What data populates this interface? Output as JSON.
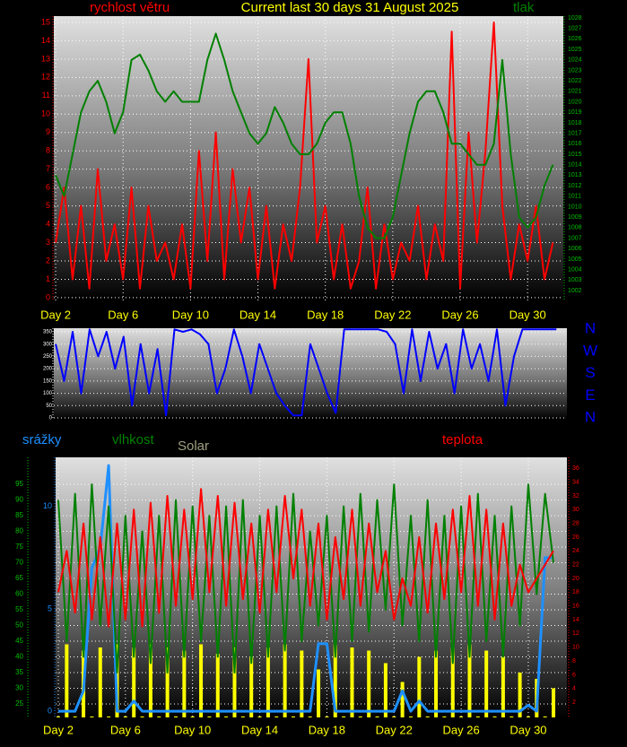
{
  "chart_data": [
    {
      "type": "line",
      "title": "Current last 30 days 31 August 2025",
      "x": [
        2,
        2.5,
        3,
        3.5,
        4,
        4.5,
        5,
        5.5,
        6,
        6.5,
        7,
        7.5,
        8,
        8.5,
        9,
        9.5,
        10,
        10.5,
        11,
        11.5,
        12,
        12.5,
        13,
        13.5,
        14,
        14.5,
        15,
        15.5,
        16,
        16.5,
        17,
        17.5,
        18,
        18.5,
        19,
        19.5,
        20,
        20.5,
        21,
        21.5,
        22,
        22.5,
        23,
        23.5,
        24,
        24.5,
        25,
        25.5,
        26,
        26.5,
        27,
        27.5,
        28,
        28.5,
        29,
        29.5,
        30,
        30.5,
        31,
        31.5
      ],
      "xlim": [
        1.89,
        32.12
      ],
      "xticks": [
        {
          "value": 2,
          "label": "Day 2"
        },
        {
          "value": 6,
          "label": "Day 6"
        },
        {
          "value": 10,
          "label": "Day 10"
        },
        {
          "value": 14,
          "label": "Day 14"
        },
        {
          "value": 18,
          "label": "Day 18"
        },
        {
          "value": 22,
          "label": "Day 22"
        },
        {
          "value": 26,
          "label": "Day 26"
        },
        {
          "value": 30,
          "label": "Day 30"
        }
      ],
      "ylim": [
        -0.15,
        15.34
      ],
      "yticks": [
        0,
        1,
        2,
        3,
        4,
        5,
        6,
        7,
        8,
        9,
        10,
        11,
        12,
        13,
        14,
        15
      ],
      "y2lim": [
        1001.06,
        1028.17
      ],
      "y2ticks": [
        1002,
        1003,
        1004,
        1005,
        1006,
        1007,
        1008,
        1009,
        1010,
        1011,
        1012,
        1013,
        1014,
        1015,
        1016,
        1017,
        1018,
        1019,
        1020,
        1021,
        1022,
        1023,
        1024,
        1025,
        1026,
        1027,
        1028
      ],
      "grid": true,
      "series": [
        {
          "name": "rychlost větru",
          "color": "#ff0000",
          "values": [
            3,
            6,
            1,
            5,
            0.5,
            7,
            2,
            4,
            1,
            6,
            0.5,
            5,
            2,
            3,
            1,
            4,
            0.5,
            8,
            2,
            9,
            1,
            7,
            3,
            6,
            1,
            5,
            0.5,
            4,
            2,
            6,
            13,
            3,
            5,
            1,
            4,
            0.5,
            2,
            6,
            0.5,
            4,
            1,
            3,
            2,
            5,
            1,
            4,
            2,
            14.5,
            0.5,
            9,
            3,
            8,
            15,
            5,
            1,
            4,
            2,
            5,
            1,
            3
          ]
        },
        {
          "name": "tlak",
          "color": "#008000",
          "axis": "y2",
          "values": [
            1013,
            1011,
            1015,
            1019,
            1021,
            1022,
            1020,
            1017,
            1019,
            1024,
            1024.5,
            1023,
            1021,
            1020,
            1021,
            1020,
            1020,
            1020,
            1024,
            1026.5,
            1024,
            1021,
            1019,
            1017,
            1016,
            1017,
            1019.5,
            1018,
            1016,
            1015,
            1015,
            1016,
            1018,
            1019,
            1019,
            1016,
            1011,
            1008,
            1007,
            1007,
            1009,
            1013,
            1017,
            1020,
            1021,
            1021,
            1019,
            1016,
            1016,
            1015,
            1014,
            1014,
            1016,
            1024,
            1015,
            1009,
            1008,
            1009,
            1012,
            1014
          ]
        }
      ]
    },
    {
      "type": "line",
      "x": [
        2,
        2.5,
        3,
        3.5,
        4,
        4.5,
        5,
        5.5,
        6,
        6.5,
        7,
        7.5,
        8,
        8.5,
        9,
        9.5,
        10,
        10.5,
        11,
        11.5,
        12,
        12.5,
        13,
        13.5,
        14,
        14.5,
        15,
        15.5,
        16,
        16.5,
        17,
        17.5,
        18,
        18.5,
        19,
        19.5,
        20,
        20.5,
        21,
        21.5,
        22,
        22.5,
        23,
        23.5,
        24,
        24.5,
        25,
        25.5,
        26,
        26.5,
        27,
        27.5,
        28,
        28.5,
        29,
        29.5,
        30,
        30.5,
        31,
        31.5
      ],
      "xlim": [
        1.89,
        32.12
      ],
      "ylim": [
        -7.3,
        364.6
      ],
      "yticks": [
        0,
        50,
        100,
        150,
        200,
        250,
        300,
        350
      ],
      "y2lim": [
        -7.3,
        364.6
      ],
      "y2ticks": [
        {
          "value": 360,
          "label": "N"
        },
        {
          "value": 270,
          "label": "W"
        },
        {
          "value": 180,
          "label": "S"
        },
        {
          "value": 90,
          "label": "E"
        },
        {
          "value": 0,
          "label": "N"
        }
      ],
      "grid": true,
      "series": [
        {
          "color": "#0000ff",
          "values": [
            300,
            150,
            350,
            100,
            360,
            250,
            350,
            200,
            330,
            50,
            300,
            100,
            280,
            10,
            360,
            350,
            360,
            340,
            300,
            100,
            200,
            360,
            250,
            100,
            300,
            200,
            100,
            50,
            10,
            10,
            300,
            200,
            100,
            20,
            360,
            360,
            360,
            360,
            360,
            350,
            300,
            100,
            360,
            150,
            350,
            200,
            300,
            100,
            360,
            200,
            300,
            150,
            360,
            50,
            250,
            360,
            360,
            360,
            360,
            360
          ]
        }
      ]
    },
    {
      "type": "line",
      "x": [
        2,
        2.5,
        3,
        3.5,
        4,
        4.5,
        5,
        5.5,
        6,
        6.5,
        7,
        7.5,
        8,
        8.5,
        9,
        9.5,
        10,
        10.5,
        11,
        11.5,
        12,
        12.5,
        13,
        13.5,
        14,
        14.5,
        15,
        15.5,
        16,
        16.5,
        17,
        17.5,
        18,
        18.5,
        19,
        19.5,
        20,
        20.5,
        21,
        21.5,
        22,
        22.5,
        23,
        23.5,
        24,
        24.5,
        25,
        25.5,
        26,
        26.5,
        27,
        27.5,
        28,
        28.5,
        29,
        29.5,
        30,
        30.5,
        31,
        31.5
      ],
      "xlim": [
        1.84,
        32.3
      ],
      "xticks": [
        {
          "value": 2,
          "label": "Day 2"
        },
        {
          "value": 6,
          "label": "Day 6"
        },
        {
          "value": 10,
          "label": "Day 10"
        },
        {
          "value": 14,
          "label": "Day 14"
        },
        {
          "value": 18,
          "label": "Day 18"
        },
        {
          "value": 22,
          "label": "Day 22"
        },
        {
          "value": 26,
          "label": "Day 26"
        },
        {
          "value": 30,
          "label": "Day 30"
        }
      ],
      "ylim": [
        20.7,
        103.6
      ],
      "yticks": [
        25,
        30,
        35,
        40,
        45,
        50,
        55,
        60,
        65,
        70,
        75,
        80,
        85,
        90,
        95
      ],
      "y2lim": [
        -0.2,
        37.6
      ],
      "y2ticks": [
        2,
        4,
        6,
        8,
        10,
        12,
        14,
        16,
        18,
        20,
        22,
        24,
        26,
        28,
        30,
        32,
        34,
        36
      ],
      "y3lim": [
        -0.3,
        12.4
      ],
      "y3ticks": [
        0,
        5,
        10
      ],
      "grid": true,
      "series": [
        {
          "name": "srážky",
          "color": "#1e90ff",
          "axis": "y3",
          "values": [
            0,
            0,
            0,
            1,
            7,
            8,
            12,
            0,
            0,
            0.5,
            0,
            0,
            0,
            0,
            0,
            0,
            0,
            0,
            0,
            0,
            0,
            0,
            0,
            0,
            0,
            0,
            0,
            0,
            0,
            0,
            0,
            3.3,
            3.3,
            0,
            0,
            0,
            0,
            0,
            0,
            0,
            0,
            1,
            0,
            0.5,
            0,
            0,
            0,
            0,
            0,
            0,
            0,
            0,
            0,
            0,
            0,
            0,
            0.3,
            0,
            7.5,
            7.5
          ]
        },
        {
          "name": "vlhkost",
          "color": "#008000",
          "values": [
            90,
            45,
            92,
            40,
            95,
            50,
            88,
            35,
            85,
            40,
            80,
            38,
            85,
            35,
            90,
            40,
            88,
            45,
            85,
            40,
            88,
            35,
            90,
            38,
            85,
            40,
            88,
            42,
            92,
            45,
            80,
            50,
            85,
            40,
            88,
            45,
            92,
            48,
            90,
            55,
            95,
            50,
            85,
            45,
            90,
            40,
            85,
            38,
            88,
            40,
            92,
            45,
            85,
            40,
            88,
            50,
            95,
            60,
            92,
            70
          ]
        },
        {
          "name": "Solar",
          "color": "#ffff00",
          "type": "bar",
          "values": [
            21,
            44,
            21,
            42,
            21,
            43,
            21,
            44,
            21,
            43,
            21,
            44,
            21,
            43,
            21,
            42,
            21,
            44,
            21,
            41,
            21,
            43,
            21,
            40,
            21,
            43,
            21,
            44,
            21,
            42,
            21,
            36,
            21,
            44,
            21,
            43,
            21,
            42,
            21,
            38,
            21,
            32,
            21,
            40,
            21,
            42,
            21,
            43,
            21,
            44,
            21,
            42,
            21,
            40,
            21,
            35,
            21,
            33,
            21,
            30
          ]
        },
        {
          "name": "teplota",
          "color": "#ff0000",
          "axis": "y2",
          "values": [
            18,
            24,
            15,
            28,
            14,
            26,
            13,
            28,
            14,
            30,
            13,
            31,
            15,
            32,
            16,
            30,
            17,
            33,
            18,
            32,
            16,
            31,
            17,
            28,
            15,
            30,
            18,
            32,
            20,
            30,
            16,
            28,
            14,
            26,
            17,
            30,
            16,
            28,
            18,
            24,
            14,
            20,
            16,
            26,
            15,
            28,
            17,
            30,
            18,
            32,
            16,
            30,
            14,
            28,
            16,
            22,
            18,
            20,
            22,
            24
          ]
        }
      ]
    }
  ]
}
